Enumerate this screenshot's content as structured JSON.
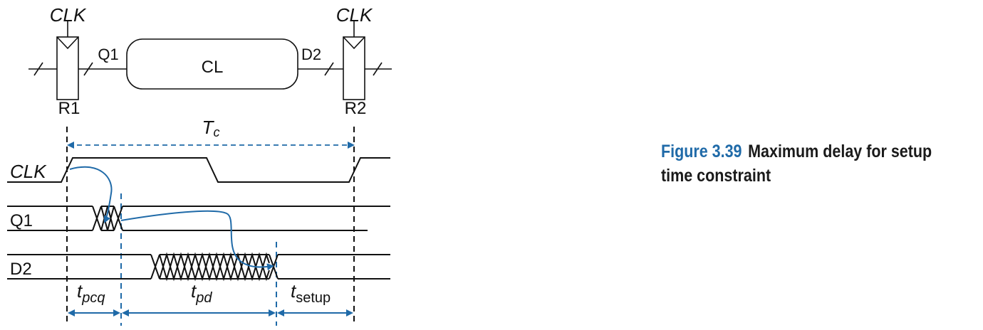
{
  "circuit": {
    "clk_left": "CLK",
    "clk_right": "CLK",
    "reg_left": "R1",
    "reg_right": "R2",
    "wire_q1": "Q1",
    "wire_d2": "D2",
    "logic_block": "CL"
  },
  "timing": {
    "period_label": "T",
    "period_sub": "c",
    "signals": [
      "CLK",
      "Q1",
      "D2"
    ],
    "intervals": [
      {
        "base": "t",
        "sub": "pcq"
      },
      {
        "base": "t",
        "sub": "pd"
      },
      {
        "base": "t",
        "sub": "setup"
      }
    ]
  },
  "caption": {
    "number": "Figure 3.39",
    "text": "Maximum delay for setup time constraint"
  },
  "colors": {
    "accent_blue": "#1f6aa8",
    "line": "#111111",
    "gray": "#555555"
  }
}
